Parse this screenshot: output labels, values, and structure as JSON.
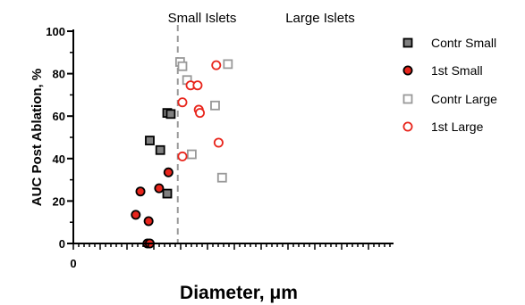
{
  "chart_data": {
    "type": "scatter",
    "title": "",
    "xlabel": "Diameter, μm",
    "ylabel": "AUC Post Ablation, %",
    "xlim": [
      0,
      250
    ],
    "ylim": [
      0,
      100
    ],
    "x_tick_labels": [
      "0"
    ],
    "y_tick_labels": [
      "0",
      "20",
      "40",
      "60",
      "80",
      "100"
    ],
    "y_ticks": [
      0,
      20,
      40,
      60,
      80,
      100
    ],
    "grid": false,
    "legend_position": "right",
    "annotations": {
      "divider_x": 88,
      "left_label": "Small Islets",
      "right_label": "Large Islets"
    },
    "series": [
      {
        "name": "Contr Small",
        "marker": "square",
        "fill": "#808080",
        "stroke": "#000000",
        "points": [
          [
            64,
            48.5
          ],
          [
            73,
            44
          ],
          [
            79,
            23.5
          ],
          [
            79,
            61.5
          ],
          [
            82,
            61
          ]
        ]
      },
      {
        "name": "1st Small",
        "marker": "circle",
        "fill": "#e8251c",
        "stroke": "#000000",
        "points": [
          [
            52,
            13.5
          ],
          [
            56,
            24.5
          ],
          [
            62,
            0
          ],
          [
            63,
            10.5
          ],
          [
            64,
            0
          ],
          [
            72,
            26
          ],
          [
            80,
            33.5
          ]
        ]
      },
      {
        "name": "Contr Large",
        "marker": "square",
        "fill": "#ffffff",
        "stroke": "#999999",
        "points": [
          [
            90,
            85.5
          ],
          [
            92,
            83.5
          ],
          [
            96,
            77
          ],
          [
            100,
            42
          ],
          [
            120,
            65
          ],
          [
            126,
            31
          ],
          [
            131,
            84.5
          ]
        ]
      },
      {
        "name": "1st Large",
        "marker": "circle",
        "fill": "#ffffff",
        "stroke": "#e8251c",
        "points": [
          [
            92,
            41
          ],
          [
            92,
            66.5
          ],
          [
            99,
            74.5
          ],
          [
            105,
            74.5
          ],
          [
            106,
            63
          ],
          [
            107,
            61.5
          ],
          [
            121,
            84
          ],
          [
            123,
            47.5
          ]
        ]
      }
    ]
  }
}
